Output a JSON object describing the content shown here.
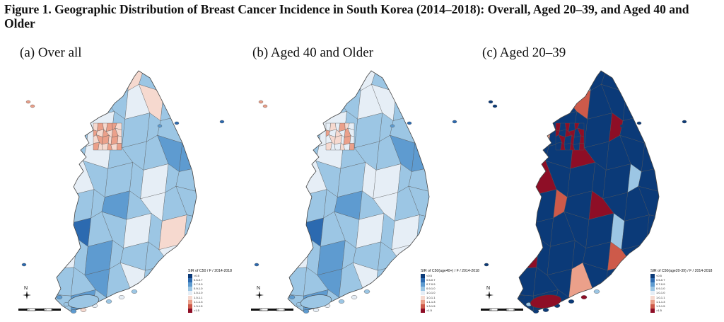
{
  "figure": {
    "title": "Figure 1. Geographic Distribution of Breast Cancer Incidence in South Korea (2014–2018): Overall, Aged 20–39, and Aged 40 and Older"
  },
  "legend_classes": [
    {
      "label": "<0.5",
      "color": "#0b3a78"
    },
    {
      "label": "0.5-0.7",
      "color": "#2c6ab0"
    },
    {
      "label": "0.7-0.9",
      "color": "#5e9bd0"
    },
    {
      "label": "0.9-1.0",
      "color": "#9cc6e4"
    },
    {
      "label": "1.0-1.0",
      "color": "#e6eef6"
    },
    {
      "label": "1.0-1.1",
      "color": "#f6d9cf"
    },
    {
      "label": "1.1-1.3",
      "color": "#eba08a"
    },
    {
      "label": "1.3-1.5",
      "color": "#cd5a4a"
    },
    {
      "label": ">1.5",
      "color": "#8e0e26"
    }
  ],
  "scale": {
    "ticks": [
      "0",
      "20",
      "40",
      "60",
      "80 km"
    ]
  },
  "north_label": "N",
  "panels": [
    {
      "id": "a",
      "label": "(a) Over all",
      "legend_title": "SIR of C50 / F / 2014-2018",
      "region_classes": [
        3,
        3,
        4,
        3,
        5,
        3,
        4,
        3,
        2,
        3,
        3,
        3,
        4,
        5,
        3,
        3,
        2,
        3,
        4,
        3,
        3,
        3,
        3,
        2,
        3,
        3,
        4,
        3,
        3,
        3,
        2,
        2,
        3,
        4,
        3,
        3,
        3,
        4,
        3,
        3,
        3,
        3,
        3,
        2,
        3,
        4,
        3,
        3,
        3,
        1
      ],
      "capital_classes": [
        5,
        6,
        5,
        6,
        6,
        5,
        6,
        5,
        6,
        5,
        6,
        5,
        5,
        6,
        6,
        5,
        6,
        5,
        6,
        5,
        5,
        6,
        5,
        6
      ],
      "jeju_class": 3,
      "islet_classes": [
        6,
        6,
        1,
        1,
        2,
        1
      ]
    },
    {
      "id": "b",
      "label": "(b) Aged 40 and Older",
      "legend_title": "SIR of C50(age40+) / F / 2014-2018",
      "region_classes": [
        3,
        3,
        4,
        3,
        4,
        3,
        4,
        3,
        2,
        3,
        3,
        3,
        4,
        4,
        3,
        3,
        2,
        3,
        4,
        3,
        3,
        3,
        3,
        2,
        3,
        3,
        4,
        3,
        3,
        3,
        2,
        2,
        3,
        4,
        3,
        3,
        4,
        4,
        3,
        3,
        3,
        3,
        3,
        2,
        3,
        4,
        3,
        3,
        3,
        1
      ],
      "capital_classes": [
        4,
        5,
        4,
        6,
        5,
        4,
        6,
        4,
        5,
        4,
        6,
        4,
        4,
        5,
        5,
        4,
        6,
        4,
        5,
        4,
        4,
        5,
        4,
        6
      ],
      "jeju_class": 3,
      "islet_classes": [
        6,
        6,
        1,
        1,
        2,
        1
      ]
    },
    {
      "id": "c",
      "label": "(c) Aged 20–39",
      "legend_title": "SIR of C50(age20-39) / F / 2014-2018",
      "region_classes": [
        0,
        0,
        0,
        3,
        0,
        0,
        8,
        0,
        0,
        0,
        0,
        7,
        0,
        0,
        0,
        0,
        0,
        6,
        0,
        0,
        0,
        8,
        0,
        0,
        0,
        0,
        0,
        8,
        0,
        0,
        0,
        0,
        0,
        8,
        0,
        0,
        0,
        0,
        3,
        0,
        0,
        0,
        7,
        0,
        8,
        0,
        0,
        0,
        0,
        0
      ],
      "capital_classes": [
        8,
        0,
        8,
        0,
        8,
        0,
        8,
        0,
        8,
        8,
        0,
        8,
        0,
        8,
        0,
        8,
        0,
        8,
        0,
        8,
        0,
        8,
        0,
        8
      ],
      "jeju_class": 8,
      "islet_classes": [
        0,
        0,
        0,
        0,
        0,
        0
      ]
    }
  ]
}
